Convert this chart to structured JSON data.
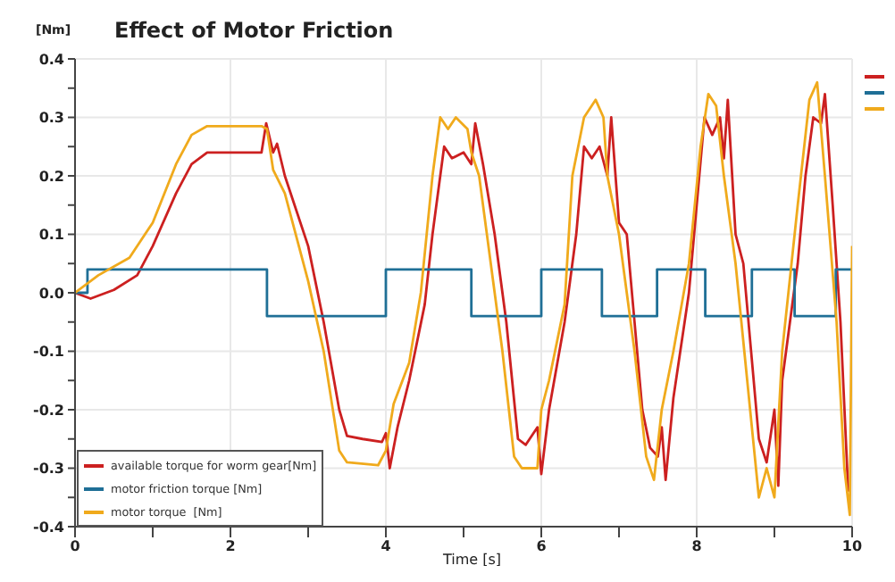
{
  "chart_data": {
    "type": "line",
    "title": "Effect of Motor Friction",
    "xlabel": "Time [s]",
    "ylabel": "[Nm]",
    "xlim": [
      0,
      10
    ],
    "xticks": [
      0,
      {
        "value": 1,
        "label": null
      },
      2,
      {
        "value": 3,
        "label": null
      },
      4,
      {
        "value": 5,
        "label": null
      },
      6,
      {
        "value": 7,
        "label": null
      },
      8,
      {
        "value": 9,
        "label": null
      },
      10
    ],
    "ylim": [
      -0.4,
      0.4
    ],
    "yticks": [
      -0.4,
      {
        "value": -0.35,
        "label": null
      },
      -0.3,
      {
        "value": -0.25,
        "label": null
      },
      -0.2,
      {
        "value": -0.15,
        "label": null
      },
      -0.1,
      {
        "value": -0.05,
        "label": null
      },
      {
        "value": 0,
        "label": "0.0"
      },
      {
        "value": 0.05,
        "label": null
      },
      0.1,
      {
        "value": 0.15,
        "label": null
      },
      0.2,
      {
        "value": 0.25,
        "label": null
      },
      0.3,
      {
        "value": 0.35,
        "label": null
      },
      0.4
    ],
    "grid": true,
    "legend": "bottom left",
    "marker": "none",
    "line_style": "solid",
    "series": [
      {
        "name": "available torque for worm gear[Nm]",
        "color": "#cc2020",
        "x": [
          0,
          0.2,
          0.4,
          0.5,
          0.8,
          1.0,
          1.3,
          1.5,
          1.7,
          2.0,
          2.4,
          2.46,
          2.55,
          2.6,
          2.7,
          3.0,
          3.2,
          3.4,
          3.5,
          3.7,
          3.95,
          4.0,
          4.05,
          4.15,
          4.3,
          4.5,
          4.6,
          4.75,
          4.85,
          5.0,
          5.1,
          5.15,
          5.25,
          5.4,
          5.55,
          5.7,
          5.8,
          5.95,
          6.0,
          6.1,
          6.3,
          6.45,
          6.55,
          6.65,
          6.75,
          6.85,
          6.9,
          7.0,
          7.1,
          7.2,
          7.3,
          7.4,
          7.5,
          7.55,
          7.6,
          7.7,
          7.9,
          8.0,
          8.1,
          8.2,
          8.3,
          8.35,
          8.4,
          8.5,
          8.6,
          8.7,
          8.8,
          8.9,
          9.0,
          9.05,
          9.1,
          9.3,
          9.4,
          9.5,
          9.6,
          9.65,
          9.75,
          9.85,
          9.95
        ],
        "values": [
          0,
          -0.01,
          0,
          0.005,
          0.03,
          0.08,
          0.17,
          0.22,
          0.24,
          0.24,
          0.24,
          0.29,
          0.24,
          0.255,
          0.2,
          0.08,
          -0.05,
          -0.2,
          -0.245,
          -0.25,
          -0.255,
          -0.24,
          -0.3,
          -0.23,
          -0.15,
          -0.02,
          0.1,
          0.25,
          0.23,
          0.24,
          0.22,
          0.29,
          0.22,
          0.1,
          -0.05,
          -0.25,
          -0.26,
          -0.23,
          -0.31,
          -0.2,
          -0.05,
          0.1,
          0.25,
          0.23,
          0.25,
          0.2,
          0.3,
          0.12,
          0.1,
          -0.05,
          -0.2,
          -0.265,
          -0.28,
          -0.23,
          -0.32,
          -0.18,
          0,
          0.15,
          0.3,
          0.27,
          0.3,
          0.23,
          0.33,
          0.1,
          0.05,
          -0.1,
          -0.25,
          -0.29,
          -0.2,
          -0.33,
          -0.15,
          0.05,
          0.2,
          0.3,
          0.29,
          0.34,
          0.15,
          -0.05,
          -0.34
        ]
      },
      {
        "name": "motor friction torque [Nm]",
        "color": "#1f6f96",
        "type": "step",
        "x": [
          0,
          0.16,
          2.47,
          4.0,
          5.1,
          6.0,
          6.78,
          7.49,
          8.11,
          8.71,
          9.26,
          9.79,
          10
        ],
        "values": [
          0,
          0.04,
          -0.04,
          0.04,
          -0.04,
          0.04,
          -0.04,
          0.04,
          -0.04,
          0.04,
          -0.04,
          0.04,
          0.04
        ]
      },
      {
        "name": "motor torque  [Nm]",
        "color": "#f0aa1c",
        "x": [
          0,
          0.3,
          0.7,
          1.0,
          1.3,
          1.5,
          1.7,
          2.0,
          2.4,
          2.47,
          2.55,
          2.7,
          3.0,
          3.2,
          3.4,
          3.5,
          3.9,
          4.0,
          4.1,
          4.3,
          4.45,
          4.6,
          4.7,
          4.8,
          4.9,
          5.05,
          5.1,
          5.2,
          5.35,
          5.5,
          5.65,
          5.75,
          5.95,
          6.0,
          6.1,
          6.3,
          6.4,
          6.55,
          6.7,
          6.8,
          6.85,
          7.0,
          7.2,
          7.35,
          7.45,
          7.55,
          7.7,
          7.9,
          8.05,
          8.15,
          8.25,
          8.35,
          8.5,
          8.65,
          8.8,
          8.9,
          9.0,
          9.1,
          9.3,
          9.45,
          9.55,
          9.65,
          9.8,
          9.9,
          9.97,
          10
        ],
        "values": [
          0,
          0.03,
          0.06,
          0.12,
          0.22,
          0.27,
          0.285,
          0.285,
          0.285,
          0.28,
          0.21,
          0.17,
          0.02,
          -0.1,
          -0.27,
          -0.29,
          -0.295,
          -0.27,
          -0.19,
          -0.12,
          0,
          0.2,
          0.3,
          0.28,
          0.3,
          0.28,
          0.24,
          0.2,
          0.05,
          -0.1,
          -0.28,
          -0.3,
          -0.3,
          -0.2,
          -0.15,
          -0.02,
          0.2,
          0.3,
          0.33,
          0.3,
          0.2,
          0.1,
          -0.1,
          -0.28,
          -0.32,
          -0.2,
          -0.1,
          0.05,
          0.25,
          0.34,
          0.32,
          0.2,
          0.05,
          -0.15,
          -0.35,
          -0.3,
          -0.35,
          -0.1,
          0.15,
          0.33,
          0.36,
          0.2,
          -0.05,
          -0.3,
          -0.38,
          0.08
        ]
      }
    ]
  }
}
